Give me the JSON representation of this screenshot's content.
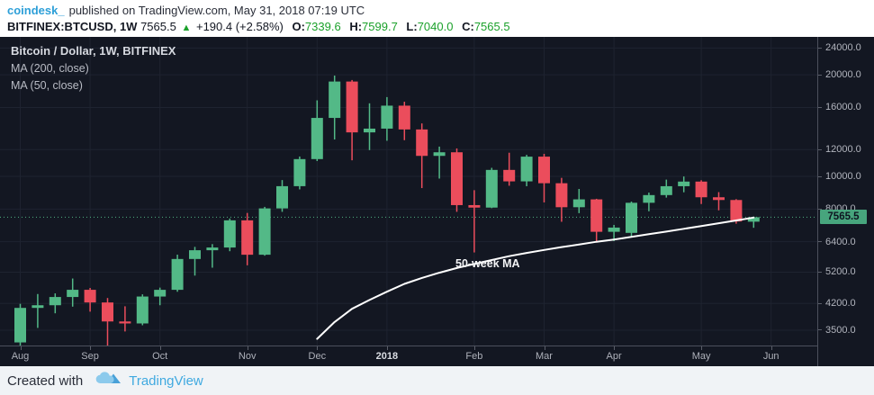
{
  "header": {
    "author": "coindesk_",
    "published": "published on TradingView.com, May 31, 2018 07:19 UTC",
    "symbol": "BITFINEX:BTCUSD, 1W",
    "last_price": "7565.5",
    "direction_icon": "▲",
    "change": "+190.4 (+2.58%)",
    "ohlc": [
      {
        "label": "O:",
        "value": "7339.6"
      },
      {
        "label": "H:",
        "value": "7599.7"
      },
      {
        "label": "L:",
        "value": "7040.0"
      },
      {
        "label": "C:",
        "value": "7565.5"
      }
    ]
  },
  "legend": {
    "title": "Bitcoin / Dollar, 1W, BITFINEX",
    "ma200": "MA (200, close)",
    "ma50": "MA (50, close)"
  },
  "footer": {
    "created_with": "Created with",
    "brand": "TradingView"
  },
  "colors": {
    "chart_bg": "#131722",
    "grid": "#1e2330",
    "candle_up": "#53b987",
    "candle_down": "#eb4d5c",
    "ma_line": "#ffffff",
    "price_line": "#53b987",
    "price_tag_bg": "#47a57d",
    "axis_text": "#b2b5be",
    "header_green": "#1ba12b",
    "link_blue": "#2d9fd8",
    "brand_blue": "#3fa9e0"
  },
  "chart_data": {
    "type": "candlestick",
    "title": "Bitcoin / Dollar, 1W, BITFINEX",
    "interval": "1W",
    "scale": "log",
    "ylim": [
      3150,
      25900
    ],
    "grid": true,
    "last_price": 7565.5,
    "ma50_label": "50-week MA",
    "price_ticks": [
      24000.0,
      20000.0,
      16000.0,
      12000.0,
      10000.0,
      8000.0,
      6400.0,
      5200.0,
      4200.0,
      3500.0
    ],
    "time_ticks": [
      {
        "label": "Aug",
        "index": 0
      },
      {
        "label": "Sep",
        "index": 4
      },
      {
        "label": "Oct",
        "index": 8
      },
      {
        "label": "Nov",
        "index": 13
      },
      {
        "label": "Dec",
        "index": 17
      },
      {
        "label": "2018",
        "index": 21,
        "bold": true
      },
      {
        "label": "Feb",
        "index": 26
      },
      {
        "label": "Mar",
        "index": 30
      },
      {
        "label": "Apr",
        "index": 34
      },
      {
        "label": "May",
        "index": 39
      },
      {
        "label": "Jun",
        "index": 43
      }
    ],
    "candles": [
      [
        3220,
        4190,
        2960,
        4075
      ],
      [
        4075,
        4480,
        3555,
        4150
      ],
      [
        4150,
        4500,
        3928,
        4390
      ],
      [
        4390,
        4980,
        4110,
        4611
      ],
      [
        4611,
        4670,
        3972,
        4229
      ],
      [
        4229,
        4360,
        2975,
        3715
      ],
      [
        3715,
        4120,
        3470,
        3665
      ],
      [
        3665,
        4470,
        3620,
        4404
      ],
      [
        4404,
        4680,
        4150,
        4610
      ],
      [
        4610,
        5860,
        4550,
        5690
      ],
      [
        5690,
        6180,
        5080,
        6040
      ],
      [
        6040,
        6298,
        5362,
        6153
      ],
      [
        6153,
        7500,
        6000,
        7407
      ],
      [
        7407,
        7790,
        5450,
        5857
      ],
      [
        5857,
        8120,
        5820,
        8036
      ],
      [
        8036,
        9750,
        7850,
        9352
      ],
      [
        9352,
        11450,
        9150,
        11250
      ],
      [
        11250,
        16800,
        11100,
        14900
      ],
      [
        14900,
        19891,
        12860,
        19100
      ],
      [
        19100,
        19300,
        11159,
        13500
      ],
      [
        13500,
        16461,
        11962,
        13850
      ],
      [
        13850,
        17176,
        12750,
        16200
      ],
      [
        16200,
        16640,
        12800,
        13772
      ],
      [
        13772,
        14350,
        9231,
        11500
      ],
      [
        11500,
        12250,
        9850,
        11786
      ],
      [
        11786,
        12100,
        7850,
        8218
      ],
      [
        8218,
        9100,
        5950,
        8080
      ],
      [
        8080,
        10600,
        8050,
        10450
      ],
      [
        10450,
        11750,
        9380,
        9664
      ],
      [
        9664,
        11580,
        9350,
        11440
      ],
      [
        11440,
        11660,
        8371,
        9542
      ],
      [
        9542,
        9898,
        7335,
        8100
      ],
      [
        8100,
        9177,
        7780,
        8547
      ],
      [
        8547,
        8580,
        6425,
        6850
      ],
      [
        6850,
        7180,
        6430,
        7050
      ],
      [
        6800,
        8420,
        6620,
        8350
      ],
      [
        8350,
        8950,
        7880,
        8800
      ],
      [
        8800,
        9780,
        8650,
        9350
      ],
      [
        9350,
        9990,
        8970,
        9650
      ],
      [
        9650,
        9740,
        8280,
        8670
      ],
      [
        8670,
        8980,
        7930,
        8510
      ],
      [
        8510,
        8560,
        7240,
        7350
      ],
      [
        7339.6,
        7599.7,
        7040.0,
        7565.5
      ]
    ],
    "ma50_start_index": 17,
    "ma50": [
      3300,
      3700,
      4050,
      4300,
      4550,
      4800,
      5000,
      5180,
      5350,
      5500,
      5650,
      5800,
      5930,
      6050,
      6170,
      6280,
      6400,
      6500,
      6620,
      6740,
      6860,
      6990,
      7120,
      7260,
      7400,
      7550
    ]
  }
}
